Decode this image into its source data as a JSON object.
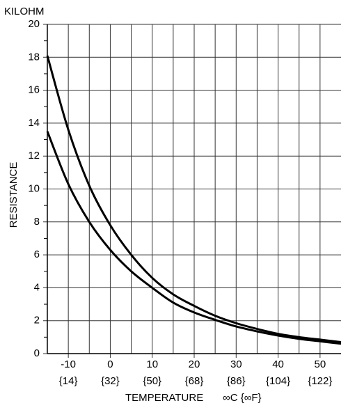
{
  "chart_data": {
    "type": "line",
    "ylabel": "RESISTANCE",
    "yunit": "KILOHM",
    "xlabel": "TEMPERATURE",
    "xunit": "∞C {∞F}",
    "x": [
      -15,
      -10,
      -5,
      0,
      5,
      10,
      15,
      20,
      25,
      30,
      35,
      40,
      45,
      50,
      55
    ],
    "series": [
      {
        "color": "#000000",
        "values": [
          18.1,
          13.6,
          10.2,
          7.8,
          6.0,
          4.6,
          3.6,
          2.9,
          2.3,
          1.85,
          1.5,
          1.2,
          1.0,
          0.85,
          0.7
        ]
      },
      {
        "color": "#000000",
        "values": [
          13.5,
          10.3,
          8.0,
          6.3,
          5.0,
          4.0,
          3.1,
          2.5,
          2.05,
          1.65,
          1.35,
          1.1,
          0.9,
          0.75,
          0.6
        ]
      }
    ],
    "xlim": [
      -15,
      55
    ],
    "ylim": [
      0,
      20
    ],
    "xticks": [
      -10,
      0,
      10,
      20,
      30,
      40,
      50
    ],
    "xticks_fahrenheit": [
      "{14}",
      "{32}",
      "{50}",
      "{68}",
      "{86}",
      "{104}",
      "{122}"
    ],
    "x_minor_grid": [
      -5,
      5,
      15,
      25,
      35,
      45
    ],
    "yticks": [
      0,
      2,
      4,
      6,
      8,
      10,
      12,
      14,
      16,
      18,
      20
    ],
    "y_minor_ticks": [
      1,
      3,
      5,
      7,
      9,
      11,
      13,
      15,
      17,
      19
    ],
    "grid": true
  }
}
